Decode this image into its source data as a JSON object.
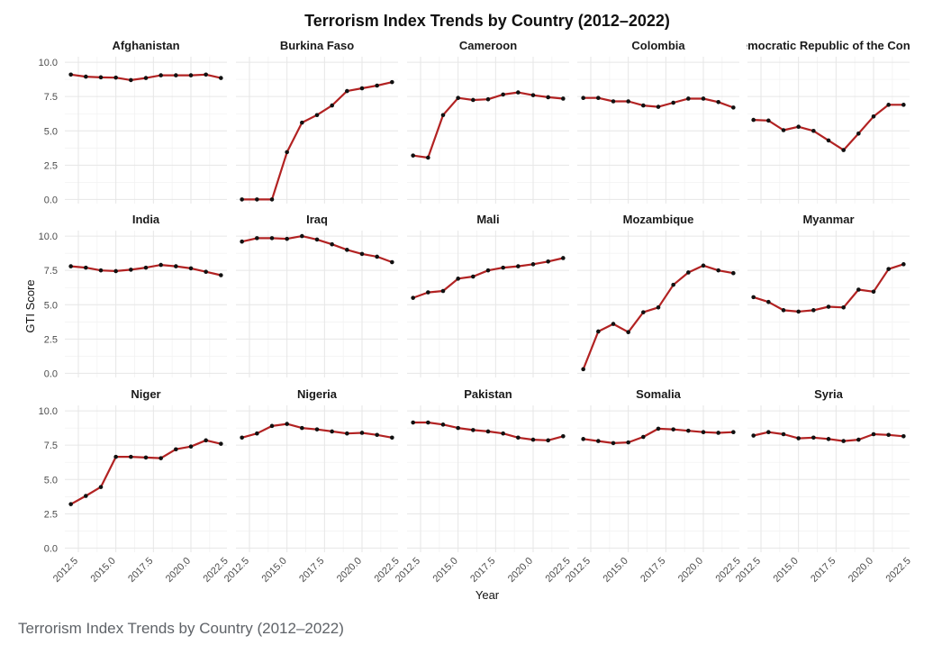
{
  "caption": "Terrorism Index Trends by Country (2012–2022)",
  "chart_data": {
    "type": "line",
    "title": "Terrorism Index Trends by Country (2012–2022)",
    "xlabel": "Year",
    "ylabel": "GTI Score",
    "xlim": [
      2011.6,
      2022.4
    ],
    "ylim": [
      -0.3,
      10.4
    ],
    "x_ticks": [
      2012.5,
      2015.0,
      2017.5,
      2020.0,
      2022.5
    ],
    "x_tick_labels": [
      "2012.5",
      "2015.0",
      "2017.5",
      "2020.0",
      "2022.5"
    ],
    "y_ticks": [
      0,
      2.5,
      5,
      7.5,
      10
    ],
    "y_tick_labels": [
      "0.0",
      "2.5",
      "5.0",
      "7.5",
      "10.0"
    ],
    "grid": true,
    "facet_layout": {
      "rows": 3,
      "cols": 5
    },
    "x": [
      2012,
      2013,
      2014,
      2015,
      2016,
      2017,
      2018,
      2019,
      2020,
      2021,
      2022
    ],
    "line_color": "#b22222",
    "point_color": "#111111",
    "panels": [
      {
        "name": "Afghanistan",
        "values": [
          9.1,
          8.95,
          8.9,
          8.88,
          8.7,
          8.85,
          9.05,
          9.05,
          9.05,
          9.1,
          8.85
        ]
      },
      {
        "name": "Burkina Faso",
        "values": [
          0.0,
          0.0,
          0.0,
          3.45,
          5.6,
          6.15,
          6.85,
          7.9,
          8.1,
          8.3,
          8.55
        ]
      },
      {
        "name": "Cameroon",
        "values": [
          3.2,
          3.05,
          6.15,
          7.4,
          7.25,
          7.3,
          7.65,
          7.8,
          7.6,
          7.45,
          7.35
        ]
      },
      {
        "name": "Colombia",
        "values": [
          7.4,
          7.4,
          7.15,
          7.15,
          6.85,
          6.75,
          7.05,
          7.35,
          7.35,
          7.1,
          6.7
        ]
      },
      {
        "name": "Democratic Republic of the Congo",
        "values": [
          5.8,
          5.75,
          5.05,
          5.3,
          5.0,
          4.3,
          3.6,
          4.8,
          6.05,
          6.9,
          6.9
        ]
      },
      {
        "name": "India",
        "values": [
          7.8,
          7.7,
          7.5,
          7.45,
          7.55,
          7.7,
          7.9,
          7.8,
          7.65,
          7.4,
          7.15
        ]
      },
      {
        "name": "Iraq",
        "values": [
          9.6,
          9.85,
          9.85,
          9.8,
          10.0,
          9.75,
          9.4,
          9.0,
          8.7,
          8.5,
          8.1
        ]
      },
      {
        "name": "Mali",
        "values": [
          5.5,
          5.9,
          6.0,
          6.9,
          7.05,
          7.5,
          7.7,
          7.8,
          7.95,
          8.15,
          8.4
        ]
      },
      {
        "name": "Mozambique",
        "values": [
          0.3,
          3.05,
          3.6,
          3.0,
          4.45,
          4.8,
          6.45,
          7.35,
          7.85,
          7.5,
          7.3
        ]
      },
      {
        "name": "Myanmar",
        "values": [
          5.55,
          5.2,
          4.6,
          4.5,
          4.6,
          4.85,
          4.8,
          6.1,
          5.95,
          7.6,
          7.95
        ]
      },
      {
        "name": "Niger",
        "values": [
          3.2,
          3.8,
          4.45,
          6.65,
          6.65,
          6.6,
          6.55,
          7.2,
          7.4,
          7.85,
          7.6
        ]
      },
      {
        "name": "Nigeria",
        "values": [
          8.05,
          8.35,
          8.9,
          9.05,
          8.75,
          8.65,
          8.5,
          8.35,
          8.4,
          8.25,
          8.05
        ]
      },
      {
        "name": "Pakistan",
        "values": [
          9.15,
          9.15,
          9.0,
          8.75,
          8.6,
          8.5,
          8.35,
          8.05,
          7.9,
          7.85,
          8.15
        ]
      },
      {
        "name": "Somalia",
        "values": [
          7.95,
          7.8,
          7.65,
          7.7,
          8.1,
          8.7,
          8.65,
          8.55,
          8.45,
          8.4,
          8.45
        ]
      },
      {
        "name": "Syria",
        "values": [
          8.2,
          8.45,
          8.3,
          8.0,
          8.05,
          7.95,
          7.8,
          7.9,
          8.3,
          8.25,
          8.15
        ]
      }
    ]
  }
}
